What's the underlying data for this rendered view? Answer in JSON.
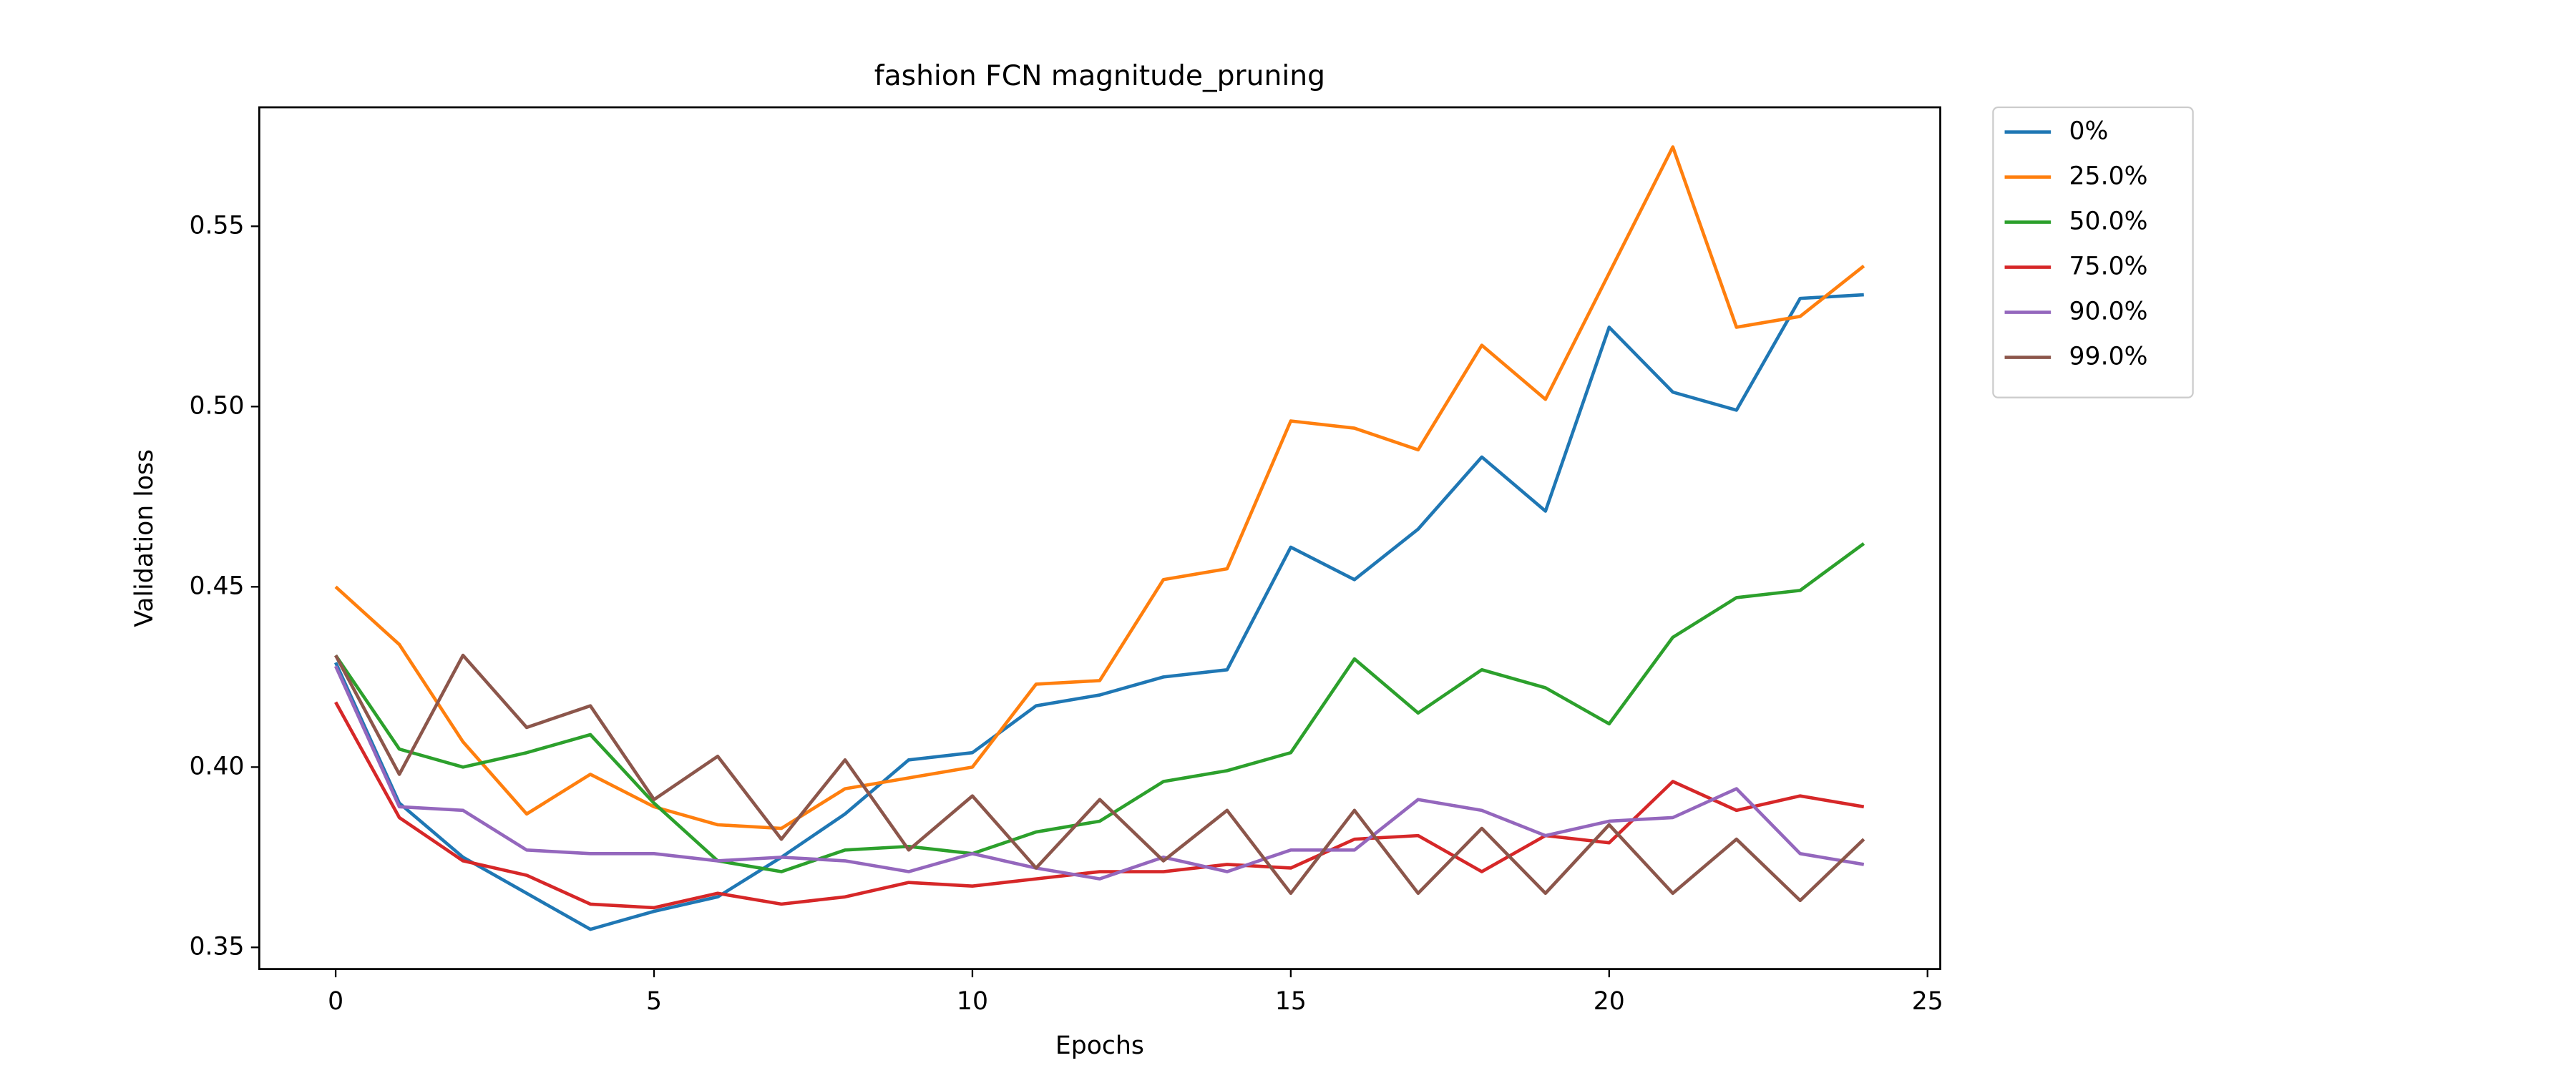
{
  "chart_data": {
    "type": "line",
    "title": "fashion FCN magnitude_pruning",
    "xlabel": "Epochs",
    "ylabel": "Validation loss",
    "x": [
      0,
      1,
      2,
      3,
      4,
      5,
      6,
      7,
      8,
      9,
      10,
      11,
      12,
      13,
      14,
      15,
      16,
      17,
      18,
      19,
      20,
      21,
      22,
      23,
      24
    ],
    "xlim": [
      -1.2,
      25.2
    ],
    "xticks": [
      0,
      5,
      10,
      15,
      20,
      25
    ],
    "ylim": [
      0.344,
      0.583
    ],
    "yticks": [
      0.35,
      {
        "value": 0.4,
        "label": "0.40"
      },
      0.45,
      {
        "value": 0.5,
        "label": "0.50"
      },
      0.55
    ],
    "legend": "outside-upper-right",
    "series": [
      {
        "name": "0%",
        "color": "#1f77b4",
        "values": [
          0.429,
          0.39,
          0.375,
          0.365,
          0.355,
          0.36,
          0.364,
          0.375,
          0.387,
          0.402,
          0.404,
          0.417,
          0.42,
          0.425,
          0.427,
          0.461,
          0.452,
          0.466,
          0.486,
          0.471,
          0.522,
          0.504,
          0.499,
          0.53,
          0.531
        ]
      },
      {
        "name": "25.0%",
        "color": "#ff7f0e",
        "values": [
          0.45,
          0.434,
          0.407,
          0.387,
          0.398,
          0.389,
          0.384,
          0.383,
          0.394,
          0.397,
          0.4,
          0.423,
          0.424,
          0.452,
          0.455,
          0.496,
          0.494,
          0.488,
          0.517,
          0.502,
          0.537,
          0.572,
          0.522,
          0.525,
          0.539
        ]
      },
      {
        "name": "50.0%",
        "color": "#2ca02c",
        "values": [
          0.431,
          0.405,
          0.4,
          0.404,
          0.409,
          0.39,
          0.374,
          0.371,
          0.377,
          0.378,
          0.376,
          0.382,
          0.385,
          0.396,
          0.399,
          0.404,
          0.43,
          0.415,
          0.427,
          0.422,
          0.412,
          0.436,
          0.447,
          0.449,
          0.462
        ]
      },
      {
        "name": "75.0%",
        "color": "#d62728",
        "values": [
          0.418,
          0.386,
          0.374,
          0.37,
          0.362,
          0.361,
          0.365,
          0.362,
          0.364,
          0.368,
          0.367,
          0.369,
          0.371,
          0.371,
          0.373,
          0.372,
          0.38,
          0.381,
          0.371,
          0.381,
          0.379,
          0.396,
          0.388,
          0.392,
          0.389
        ]
      },
      {
        "name": "90.0%",
        "color": "#9467bd",
        "values": [
          0.428,
          0.389,
          0.388,
          0.377,
          0.376,
          0.376,
          0.374,
          0.375,
          0.374,
          0.371,
          0.376,
          0.372,
          0.369,
          0.375,
          0.371,
          0.377,
          0.377,
          0.391,
          0.388,
          0.381,
          0.385,
          0.386,
          0.394,
          0.376,
          0.373
        ]
      },
      {
        "name": "99.0%",
        "color": "#8c564b",
        "values": [
          0.431,
          0.398,
          0.431,
          0.411,
          0.417,
          0.391,
          0.403,
          0.38,
          0.402,
          0.377,
          0.392,
          0.372,
          0.391,
          0.374,
          0.388,
          0.365,
          0.388,
          0.365,
          0.383,
          0.365,
          0.384,
          0.365,
          0.38,
          0.363,
          0.38
        ]
      }
    ]
  }
}
